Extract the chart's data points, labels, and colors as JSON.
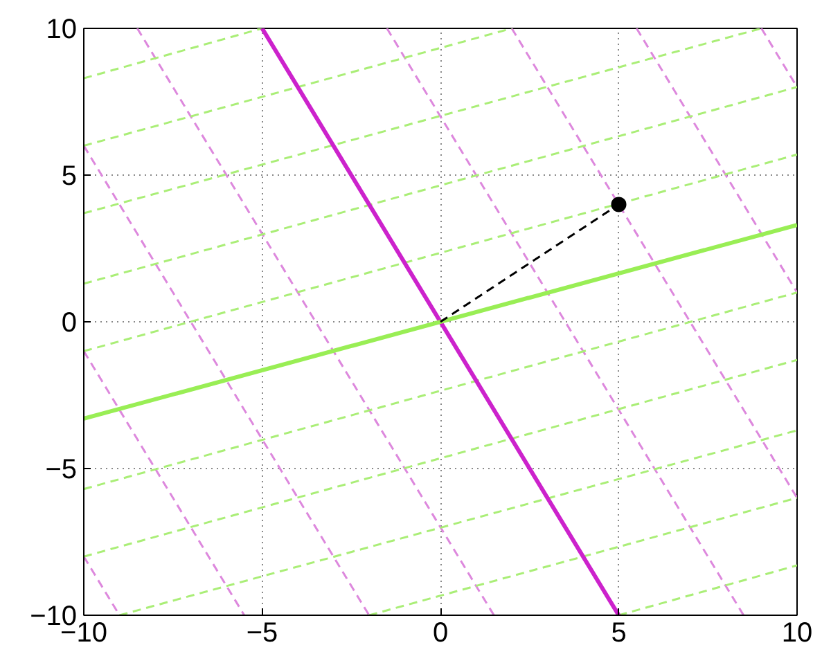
{
  "chart_data": {
    "type": "line",
    "xlim": [
      -10,
      10
    ],
    "ylim": [
      -10,
      10
    ],
    "xticks": [
      -10,
      -5,
      0,
      5,
      10
    ],
    "yticks": [
      -10,
      -5,
      0,
      5,
      10
    ],
    "grid": true,
    "marker": "none",
    "series": [
      {
        "color": "#dd88dd",
        "line_style": "dashed",
        "x": [
          -10,
          -9
        ],
        "values": [
          -8,
          -10
        ]
      },
      {
        "color": "#dd88dd",
        "line_style": "dashed",
        "x": [
          -10,
          -5.5
        ],
        "values": [
          -1,
          -10
        ]
      },
      {
        "color": "#dd88dd",
        "line_style": "dashed",
        "x": [
          -10,
          -2
        ],
        "values": [
          6,
          -10
        ]
      },
      {
        "color": "#dd88dd",
        "line_style": "dashed",
        "x": [
          -8.5,
          1.5
        ],
        "values": [
          10,
          -10
        ]
      },
      {
        "color": "#dd88dd",
        "line_style": "dashed",
        "x": [
          -1.5,
          8.5
        ],
        "values": [
          10,
          -10
        ]
      },
      {
        "color": "#dd88dd",
        "line_style": "dashed",
        "x": [
          2,
          10
        ],
        "values": [
          10,
          -6
        ]
      },
      {
        "color": "#dd88dd",
        "line_style": "dashed",
        "x": [
          5.5,
          10
        ],
        "values": [
          10,
          1
        ]
      },
      {
        "color": "#dd88dd",
        "line_style": "dashed",
        "x": [
          9,
          10
        ],
        "values": [
          10,
          8
        ]
      },
      {
        "color": "#aaee77",
        "line_style": "dashed",
        "x": [
          -10,
          10
        ],
        "values": [
          -1,
          5.7
        ]
      },
      {
        "color": "#aaee77",
        "line_style": "dashed",
        "x": [
          -10,
          10
        ],
        "values": [
          1.3,
          8
        ]
      },
      {
        "color": "#aaee77",
        "line_style": "dashed",
        "x": [
          -10,
          9
        ],
        "values": [
          3.7,
          10
        ]
      },
      {
        "color": "#aaee77",
        "line_style": "dashed",
        "x": [
          -10,
          2
        ],
        "values": [
          6,
          10
        ]
      },
      {
        "color": "#aaee77",
        "line_style": "dashed",
        "x": [
          -10,
          -5
        ],
        "values": [
          8.3,
          10
        ]
      },
      {
        "color": "#aaee77",
        "line_style": "dashed",
        "x": [
          -10,
          10
        ],
        "values": [
          -5.7,
          1
        ]
      },
      {
        "color": "#aaee77",
        "line_style": "dashed",
        "x": [
          -10,
          10
        ],
        "values": [
          -8,
          -1.3
        ]
      },
      {
        "color": "#aaee77",
        "line_style": "dashed",
        "x": [
          -9,
          10
        ],
        "values": [
          -10,
          -3.7
        ]
      },
      {
        "color": "#aaee77",
        "line_style": "dashed",
        "x": [
          -2,
          10
        ],
        "values": [
          -10,
          -6
        ]
      },
      {
        "color": "#aaee77",
        "line_style": "dashed",
        "x": [
          5,
          10
        ],
        "values": [
          -10,
          -8.3
        ]
      },
      {
        "color": "#cc22cc",
        "line_style": "solid",
        "x": [
          -5,
          5
        ],
        "values": [
          10,
          -10
        ]
      },
      {
        "color": "#99ee55",
        "line_style": "solid",
        "x": [
          -10,
          10
        ],
        "values": [
          -3.3,
          3.3
        ]
      },
      {
        "color": "#000000",
        "line_style": "dashed",
        "x": [
          0,
          5
        ],
        "values": [
          0,
          4
        ]
      },
      {
        "type": "scatter",
        "marker": "circle",
        "color": "#000000",
        "x": [
          5
        ],
        "values": [
          4
        ]
      }
    ]
  }
}
